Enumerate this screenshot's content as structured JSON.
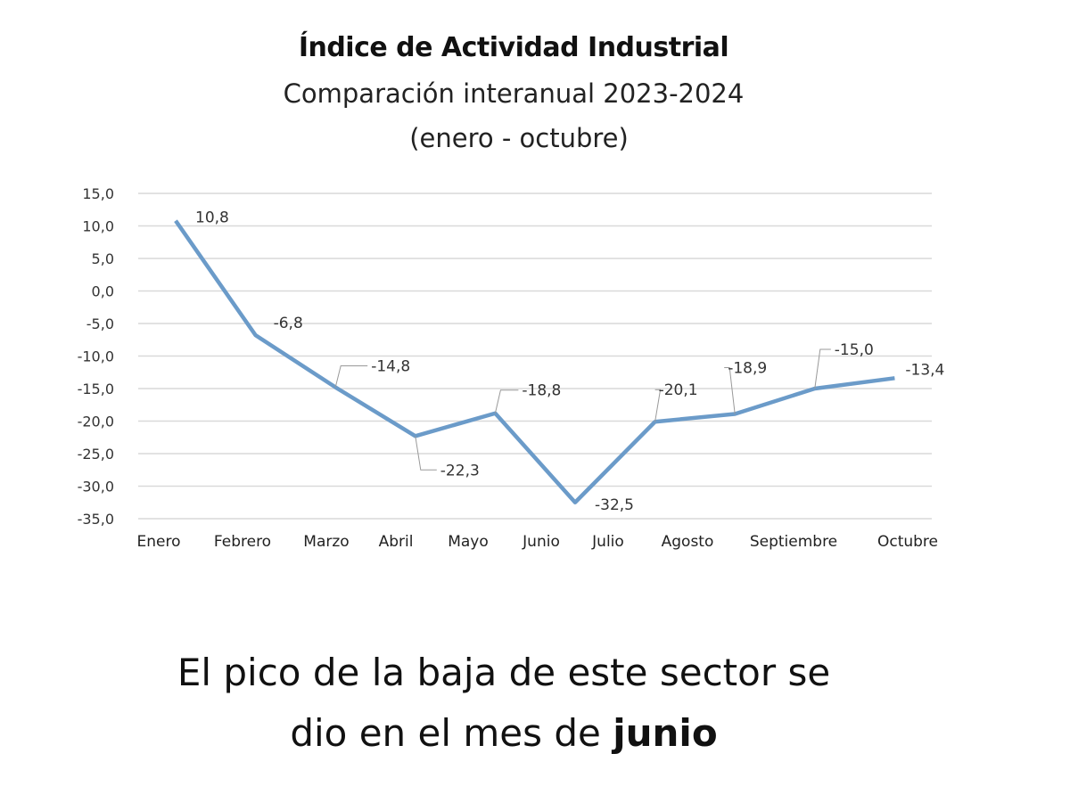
{
  "chart_data": {
    "type": "line",
    "title": "Índice de Actividad Industrial",
    "subtitle": "Comparación interanual 2023-2024",
    "period": "(enero - octubre)",
    "categories": [
      "Enero",
      "Febrero",
      "Marzo",
      "Abril",
      "Mayo",
      "Junio",
      "Julio",
      "Agosto",
      "Septiembre",
      "Octubre"
    ],
    "values": [
      10.8,
      -6.8,
      -14.8,
      -22.3,
      -18.8,
      -32.5,
      -20.1,
      -18.9,
      -15.0,
      -13.4
    ],
    "data_labels": [
      "10,8",
      "-6,8",
      "-14,8",
      "-22,3",
      "-18,8",
      "-32,5",
      "-20,1",
      "-18,9",
      "-15,0",
      "-13,4"
    ],
    "y_ticks": [
      "15,0",
      "10,0",
      "5,0",
      "0,0",
      "-5,0",
      "-10,0",
      "-15,0",
      "-20,0",
      "-25,0",
      "-30,0",
      "-35,0"
    ],
    "ylim": [
      -35,
      15
    ],
    "grid": true,
    "line_color": "#6b9bc9",
    "grid_color": "#d9d9d9"
  },
  "caption": {
    "line1": "El pico de la baja de este sector se",
    "line2_prefix": "dio en el mes de ",
    "line2_bold": "junio"
  }
}
